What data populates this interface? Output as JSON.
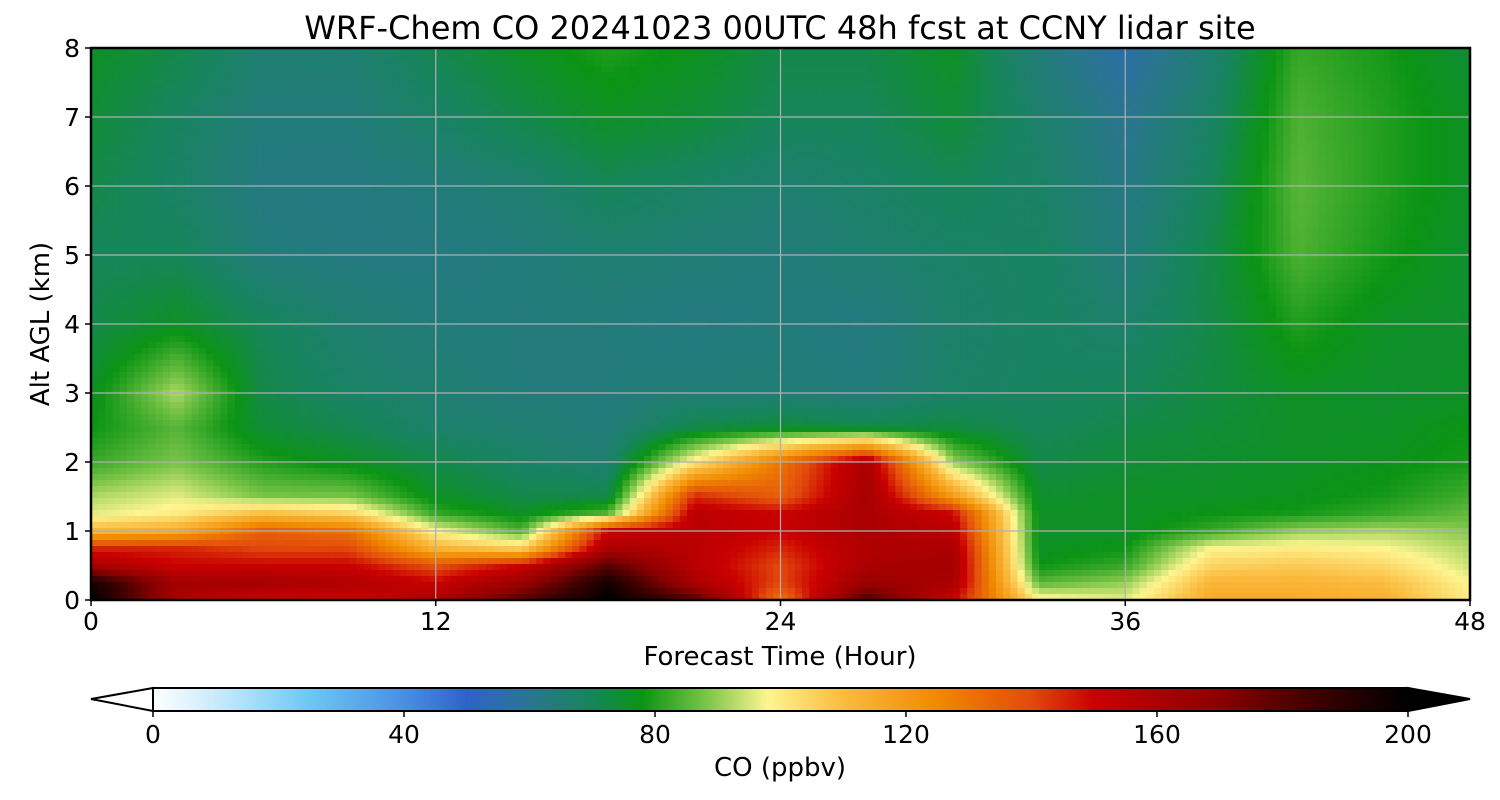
{
  "chart_data": {
    "type": "heatmap",
    "title": "WRF-Chem CO  20241023 00UTC 48h fcst at CCNY lidar site",
    "xlabel": "Forecast Time (Hour)",
    "ylabel": "Alt AGL (km)",
    "xlim": [
      0,
      48
    ],
    "ylim": [
      0,
      8
    ],
    "x_ticks": [
      "0",
      "12",
      "24",
      "36",
      "48"
    ],
    "y_ticks": [
      "0",
      "1",
      "2",
      "3",
      "4",
      "5",
      "6",
      "7",
      "8"
    ],
    "grid": true,
    "colorbar": {
      "label": "CO  (ppbv)",
      "range": [
        0,
        200
      ],
      "ticks": [
        "0",
        "40",
        "80",
        "120",
        "160",
        "200"
      ],
      "extend": "both",
      "stops": [
        {
          "value": 0,
          "color": "#ffffff"
        },
        {
          "value": 12,
          "color": "#bfe6fb"
        },
        {
          "value": 25,
          "color": "#6cc7f4"
        },
        {
          "value": 40,
          "color": "#4a8fe3"
        },
        {
          "value": 50,
          "color": "#2f62c9"
        },
        {
          "value": 60,
          "color": "#2a7590"
        },
        {
          "value": 70,
          "color": "#16855a"
        },
        {
          "value": 78,
          "color": "#0b9414"
        },
        {
          "value": 88,
          "color": "#79c447"
        },
        {
          "value": 98,
          "color": "#fdf590"
        },
        {
          "value": 110,
          "color": "#fbbb3f"
        },
        {
          "value": 125,
          "color": "#f08a00"
        },
        {
          "value": 140,
          "color": "#e24a0c"
        },
        {
          "value": 150,
          "color": "#c90000"
        },
        {
          "value": 170,
          "color": "#8b0000"
        },
        {
          "value": 185,
          "color": "#3d0000"
        },
        {
          "value": 200,
          "color": "#000000"
        }
      ]
    },
    "field": {
      "x": [
        0,
        3,
        6,
        9,
        12,
        15,
        18,
        21,
        24,
        27,
        30,
        33,
        36,
        39,
        42,
        45,
        48
      ],
      "y": [
        0,
        0.25,
        0.5,
        0.75,
        1,
        1.25,
        1.5,
        2,
        2.5,
        3,
        4,
        5,
        6,
        7,
        8
      ],
      "values": [
        [
          200,
          160,
          150,
          150,
          158,
          180,
          200,
          180,
          130,
          182,
          150,
          100,
          96,
          115,
          115,
          113,
          100
        ],
        [
          195,
          162,
          162,
          158,
          150,
          165,
          195,
          160,
          140,
          165,
          160,
          85,
          90,
          112,
          112,
          110,
          98
        ],
        [
          160,
          150,
          150,
          150,
          138,
          150,
          180,
          155,
          140,
          160,
          162,
          78,
          82,
          105,
          107,
          104,
          94
        ],
        [
          145,
          145,
          140,
          140,
          112,
          105,
          160,
          155,
          145,
          158,
          160,
          76,
          78,
          98,
          100,
          98,
          92
        ],
        [
          112,
          115,
          135,
          130,
          98,
          84,
          150,
          155,
          150,
          160,
          155,
          76,
          76,
          82,
          90,
          92,
          89
        ],
        [
          96,
          100,
          110,
          105,
          82,
          76,
          85,
          155,
          150,
          160,
          150,
          76,
          76,
          78,
          79,
          82,
          86
        ],
        [
          92,
          96,
          88,
          88,
          76,
          72,
          72,
          145,
          135,
          162,
          120,
          75,
          76,
          76,
          77,
          79,
          83
        ],
        [
          82,
          88,
          80,
          76,
          72,
          68,
          66,
          100,
          130,
          160,
          90,
          72,
          74,
          75,
          76,
          77,
          79
        ],
        [
          78,
          85,
          74,
          71,
          67,
          66,
          64,
          72,
          74,
          72,
          73,
          70,
          72,
          74,
          76,
          76,
          78
        ],
        [
          76,
          92,
          72,
          68,
          66,
          64,
          64,
          65,
          65,
          64,
          68,
          69,
          70,
          73,
          76,
          75,
          76
        ],
        [
          72,
          76,
          70,
          66,
          64,
          64,
          64,
          63,
          64,
          63,
          67,
          69,
          67,
          72,
          80,
          76,
          75
        ],
        [
          70,
          70,
          64,
          63,
          63,
          64,
          66,
          65,
          64,
          66,
          68,
          69,
          64,
          72,
          84,
          79,
          75
        ],
        [
          72,
          68,
          63,
          63,
          64,
          66,
          70,
          68,
          66,
          68,
          70,
          68,
          62,
          70,
          85,
          80,
          76
        ],
        [
          74,
          69,
          64,
          64,
          68,
          72,
          76,
          74,
          70,
          70,
          74,
          67,
          60,
          68,
          84,
          80,
          76
        ],
        [
          76,
          72,
          66,
          66,
          71,
          76,
          80,
          77,
          72,
          72,
          76,
          64,
          56,
          66,
          82,
          79,
          74
        ]
      ]
    }
  }
}
